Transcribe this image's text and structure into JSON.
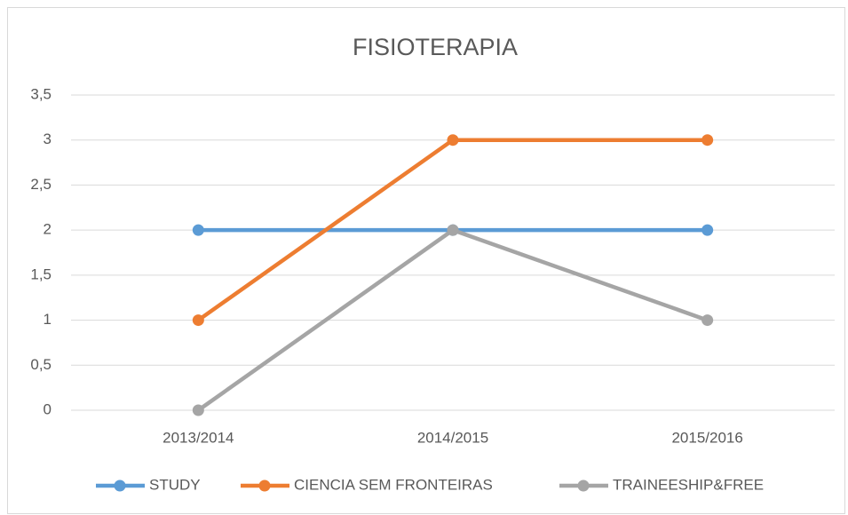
{
  "chart_data": {
    "type": "line",
    "title": "FISIOTERAPIA",
    "categories": [
      "2013/2014",
      "2014/2015",
      "2015/2016"
    ],
    "series": [
      {
        "name": "STUDY",
        "color": "#5b9bd5",
        "values": [
          2,
          2,
          2
        ]
      },
      {
        "name": "CIENCIA SEM FRONTEIRAS",
        "color": "#ed7d31",
        "values": [
          1,
          3,
          3
        ]
      },
      {
        "name": "TRAINEESHIP&FREE",
        "color": "#a5a5a5",
        "values": [
          0,
          2,
          1
        ]
      }
    ],
    "ylim": [
      0,
      3.5
    ],
    "yticks": [
      0,
      {
        "value": 0.5,
        "label": "0,5"
      },
      1,
      {
        "value": 1.5,
        "label": "1,5"
      },
      2,
      {
        "value": 2.5,
        "label": "2,5"
      },
      3,
      {
        "value": 3.5,
        "label": "3,5"
      }
    ],
    "grid": true,
    "legend": "bottom"
  }
}
